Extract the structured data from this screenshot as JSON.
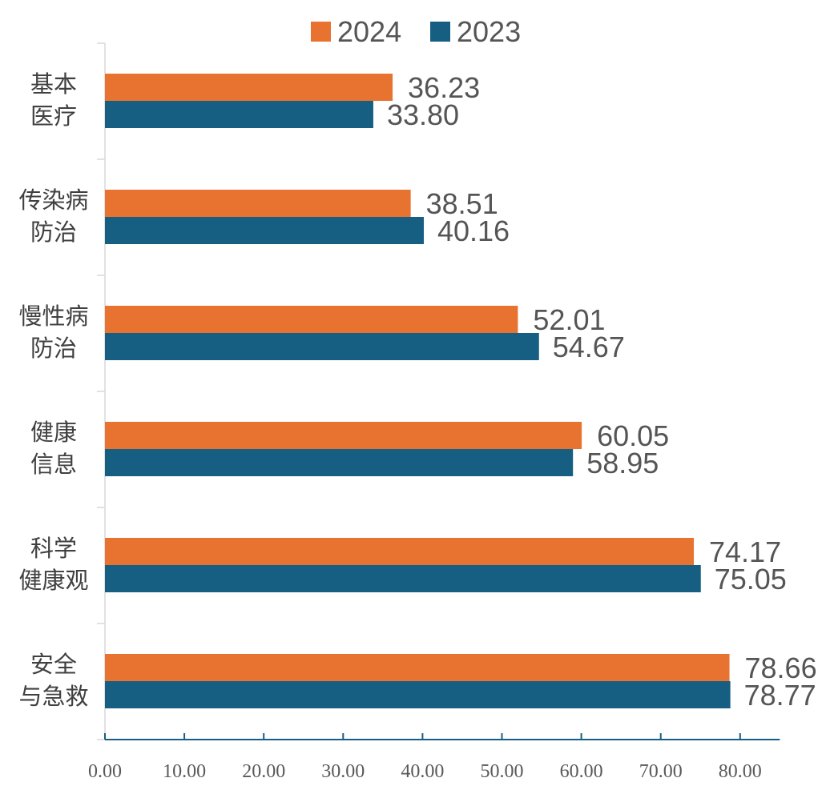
{
  "chart_data": {
    "type": "bar",
    "orientation": "horizontal",
    "categories": [
      [
        "基本",
        "医疗"
      ],
      [
        "传染病",
        "防治"
      ],
      [
        "慢性病",
        "防治"
      ],
      [
        "健康",
        "信息"
      ],
      [
        "科学",
        "健康观"
      ],
      [
        "安全",
        "与急救"
      ]
    ],
    "series": [
      {
        "name": "2024",
        "color": "#E87330",
        "values": [
          36.23,
          38.51,
          52.01,
          60.05,
          74.17,
          78.66
        ]
      },
      {
        "name": "2023",
        "color": "#175F82",
        "values": [
          33.8,
          40.16,
          54.67,
          58.95,
          75.05,
          78.77
        ]
      }
    ],
    "data_labels": {
      "2024": [
        "36.23",
        "38.51",
        "52.01",
        "60.05",
        "74.17",
        "78.66"
      ],
      "2023": [
        "33.80",
        "40.16",
        "54.67",
        "58.95",
        "75.05",
        "78.77"
      ]
    },
    "x_ticks": [
      "0.00",
      "10.00",
      "20.00",
      "30.00",
      "40.00",
      "50.00",
      "60.00",
      "70.00",
      "80.00"
    ],
    "xlim": [
      0,
      85
    ],
    "legend_position": "top-center",
    "grid": false
  }
}
